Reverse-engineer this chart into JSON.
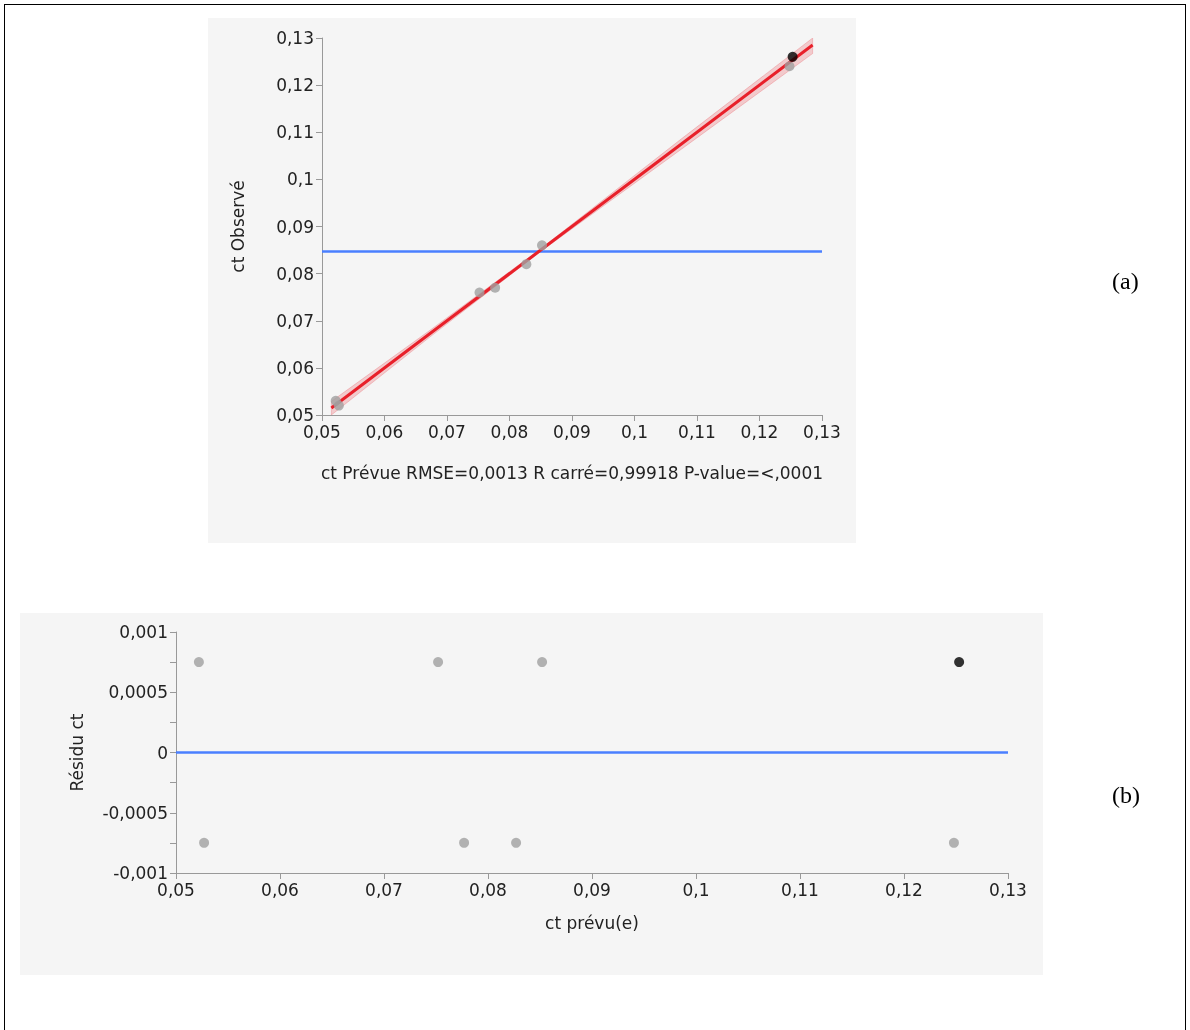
{
  "chart_data": [
    {
      "type": "scatter",
      "xlabel": "ct Prévue RMSE=0,0013 R carré=0,99918 P-value=<,0001",
      "ylabel": "ct Observé",
      "annotations": [
        "(a)"
      ],
      "xlim": [
        0.05,
        0.13
      ],
      "xticks": [
        {
          "value": 0.05,
          "label": "0,05"
        },
        {
          "value": 0.06,
          "label": "0,06"
        },
        {
          "value": 0.07,
          "label": "0,07"
        },
        {
          "value": 0.08,
          "label": "0,08"
        },
        {
          "value": 0.09,
          "label": "0,09"
        },
        {
          "value": 0.1,
          "label": "0,1"
        },
        {
          "value": 0.11,
          "label": "0,11"
        },
        {
          "value": 0.12,
          "label": "0,12"
        },
        {
          "value": 0.13,
          "label": "0,13"
        }
      ],
      "ylim": [
        0.05,
        0.13
      ],
      "yticks": [
        {
          "value": 0.05,
          "label": "0,05"
        },
        {
          "value": 0.06,
          "label": "0,06"
        },
        {
          "value": 0.07,
          "label": "0,07"
        },
        {
          "value": 0.08,
          "label": "0,08"
        },
        {
          "value": 0.09,
          "label": "0,09"
        },
        {
          "value": 0.1,
          "label": "0,1"
        },
        {
          "value": 0.11,
          "label": "0,11"
        },
        {
          "value": 0.12,
          "label": "0,12"
        },
        {
          "value": 0.13,
          "label": "0,13"
        }
      ],
      "grid": false,
      "series": [
        {
          "type": "line",
          "marker": "none",
          "color": "#e8202a",
          "x": [
            0.0515,
            0.0675,
            0.085,
            0.1075,
            0.1285
          ],
          "values": [
            0.0515,
            0.0675,
            0.085,
            0.1075,
            0.1285
          ],
          "lower": [
            0.05,
            0.0668,
            0.0847,
            0.1064,
            0.1267
          ],
          "upper": [
            0.0529,
            0.0682,
            0.0853,
            0.1086,
            0.13
          ]
        },
        {
          "type": "scatter",
          "marker": "circle",
          "color": "#a0a0a0",
          "x": [
            0.0522,
            0.0527,
            0.0752,
            0.0777,
            0.0827,
            0.0852,
            0.1248
          ],
          "values": [
            0.053,
            0.052,
            0.076,
            0.077,
            0.082,
            0.086,
            0.124
          ]
        },
        {
          "type": "scatter",
          "marker": "circle",
          "color": "#000000",
          "x": [
            0.1253
          ],
          "values": [
            0.126
          ]
        }
      ],
      "ref_lines": [
        {
          "axis": "y",
          "value": 0.0847,
          "color": "#4a7fff"
        }
      ]
    },
    {
      "type": "scatter",
      "xlabel": "ct prévu(e)",
      "ylabel": "Résidu ct",
      "annotations": [
        "(b)"
      ],
      "xlim": [
        0.05,
        0.13
      ],
      "xticks": [
        {
          "value": 0.05,
          "label": "0,05"
        },
        {
          "value": 0.06,
          "label": "0,06"
        },
        {
          "value": 0.07,
          "label": "0,07"
        },
        {
          "value": 0.08,
          "label": "0,08"
        },
        {
          "value": 0.09,
          "label": "0,09"
        },
        {
          "value": 0.1,
          "label": "0,1"
        },
        {
          "value": 0.11,
          "label": "0,11"
        },
        {
          "value": 0.12,
          "label": "0,12"
        },
        {
          "value": 0.13,
          "label": "0,13"
        }
      ],
      "ylim": [
        -0.001,
        0.001
      ],
      "yticks": [
        {
          "value": -0.001,
          "label": "-0,001"
        },
        {
          "value": -0.00075,
          "label": null
        },
        {
          "value": -0.0005,
          "label": "-0,0005"
        },
        {
          "value": -0.00025,
          "label": null
        },
        0,
        {
          "value": 0.00025,
          "label": null
        },
        {
          "value": 0.0005,
          "label": "0,0005"
        },
        {
          "value": 0.00075,
          "label": null
        },
        {
          "value": 0.001,
          "label": "0,001"
        }
      ],
      "grid": false,
      "marker": "circle",
      "series": [
        {
          "type": "scatter",
          "color": "#a0a0a0",
          "x": [
            0.0522,
            0.0527,
            0.0752,
            0.0777,
            0.0827,
            0.0852,
            0.1248
          ],
          "values": [
            0.00075,
            -0.00075,
            0.00075,
            -0.00075,
            -0.00075,
            0.00075,
            -0.00075
          ]
        },
        {
          "type": "scatter",
          "color": "#000000",
          "x": [
            0.1253
          ],
          "values": [
            0.00075
          ]
        }
      ],
      "ref_lines": [
        {
          "axis": "y",
          "value": 0,
          "color": "#4a7fff"
        }
      ]
    }
  ]
}
